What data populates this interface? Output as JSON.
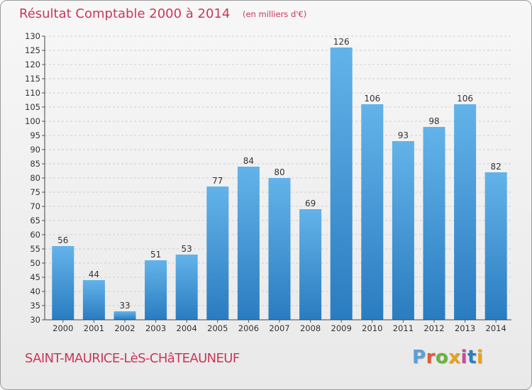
{
  "header": {
    "title": "Résultat Comptable 2000 à 2014",
    "subtitle": "(en milliers d'€)"
  },
  "footer": {
    "commune": "SAINT-MAURICE-LèS-CHâTEAUNEUF",
    "logo": "Proxiti"
  },
  "colors": {
    "title": "#c8385a",
    "bar_top": "#63b3ea",
    "bar_bottom": "#2a7cc0",
    "logo_letters": [
      "#5aa0d8",
      "#e05a3a",
      "#6bb33c",
      "#e8a21e",
      "#c64a9a",
      "#2c7fc6",
      "#e8a21e"
    ]
  },
  "chart_data": {
    "type": "bar",
    "categories": [
      "2000",
      "2001",
      "2002",
      "2003",
      "2004",
      "2005",
      "2006",
      "2007",
      "2008",
      "2009",
      "2010",
      "2011",
      "2012",
      "2013",
      "2014"
    ],
    "values": [
      56,
      44,
      33,
      51,
      53,
      77,
      84,
      80,
      69,
      126,
      106,
      93,
      98,
      106,
      82
    ],
    "ylim": [
      30,
      130
    ],
    "ytick_step": 5,
    "grid": true,
    "data_labels": true
  }
}
